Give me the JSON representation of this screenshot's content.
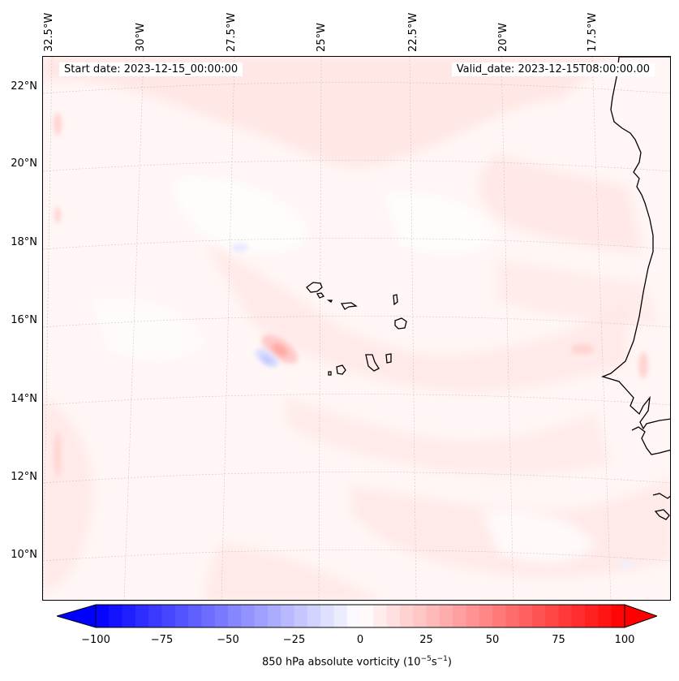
{
  "map": {
    "start_label": "Start date: 2023-12-15_00:00:00",
    "valid_label": "Valid_date: 2023-12-15T08:00:00.00",
    "longitude_labels": [
      "32.5°W",
      "30°W",
      "27.5°W",
      "25°W",
      "22.5°W",
      "20°W",
      "17.5°W"
    ],
    "latitude_labels": [
      "22°N",
      "20°N",
      "18°N",
      "16°N",
      "14°N",
      "12°N",
      "10°N"
    ],
    "features": [
      "Cape Verde islands",
      "West African coastline"
    ]
  },
  "colorbar": {
    "ticks": [
      "−100",
      "−75",
      "−50",
      "−25",
      "0",
      "25",
      "50",
      "75",
      "100"
    ],
    "label_prefix": "850 hPa absolute vorticity (10",
    "label_exp1": "−5",
    "label_mid": "s",
    "label_exp2": "−1",
    "label_suffix": ")",
    "range": [
      -100,
      100
    ],
    "colormap": "bwr",
    "min_color": "#0000ff",
    "mid_color": "#ffffff",
    "max_color": "#ff0000"
  }
}
